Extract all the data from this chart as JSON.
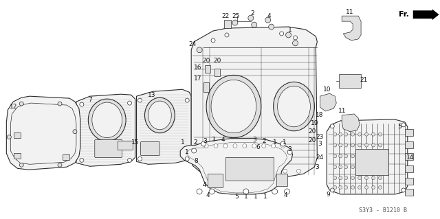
{
  "bg_color": "#ffffff",
  "fig_width": 6.4,
  "fig_height": 3.19,
  "dpi": 100,
  "diagram_code": "S3Y3 - B1210 B",
  "line_color": "#2a2a2a",
  "fill_light": "#f2f2f2",
  "fill_mid": "#e0e0e0",
  "fill_dark": "#c8c8c8",
  "text_color": "#111111",
  "font_size": 6.5
}
